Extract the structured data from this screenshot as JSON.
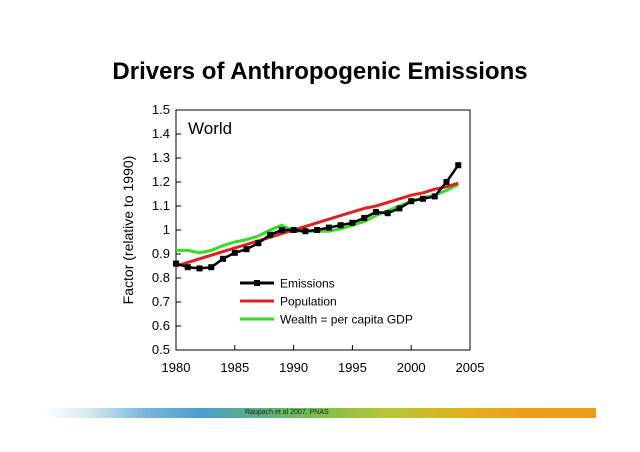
{
  "slide": {
    "title": "Drivers of Anthropogenic Emissions",
    "credit": "Raupach et al 2007, PNAS"
  },
  "chart_data": {
    "type": "line",
    "title": "Drivers of Anthropogenic Emissions",
    "panel_label": "World",
    "xlabel": "",
    "ylabel": "Factor (relative to 1990)",
    "xlim": [
      1980,
      2005
    ],
    "ylim": [
      0.5,
      1.5
    ],
    "x_ticks": [
      1980,
      1985,
      1990,
      1995,
      2000,
      2005
    ],
    "y_ticks": [
      0.5,
      0.6,
      0.7,
      0.8,
      0.9,
      1,
      1.1,
      1.2,
      1.3,
      1.4,
      1.5
    ],
    "grid": false,
    "legend_position": "lower-center",
    "series": [
      {
        "name": "Emissions",
        "color": "#000000",
        "marker": "square",
        "x": [
          1980,
          1981,
          1982,
          1983,
          1984,
          1985,
          1986,
          1987,
          1988,
          1989,
          1990,
          1991,
          1992,
          1993,
          1994,
          1995,
          1996,
          1997,
          1998,
          1999,
          2000,
          2001,
          2002,
          2003,
          2004
        ],
        "y": [
          0.86,
          0.845,
          0.84,
          0.845,
          0.88,
          0.905,
          0.92,
          0.945,
          0.98,
          1.0,
          1.0,
          0.995,
          1.0,
          1.01,
          1.02,
          1.03,
          1.05,
          1.075,
          1.07,
          1.09,
          1.12,
          1.13,
          1.14,
          1.2,
          1.27
        ]
      },
      {
        "name": "Population",
        "color": "#e02020",
        "x": [
          1980,
          1981,
          1982,
          1983,
          1984,
          1985,
          1986,
          1987,
          1988,
          1989,
          1990,
          1991,
          1992,
          1993,
          1994,
          1995,
          1996,
          1997,
          1998,
          1999,
          2000,
          2001,
          2002,
          2003,
          2004
        ],
        "y": [
          0.85,
          0.865,
          0.88,
          0.895,
          0.91,
          0.925,
          0.94,
          0.955,
          0.97,
          0.985,
          1.0,
          1.015,
          1.03,
          1.045,
          1.06,
          1.075,
          1.09,
          1.1,
          1.115,
          1.13,
          1.145,
          1.155,
          1.17,
          1.18,
          1.195
        ]
      },
      {
        "name": "Wealth = per capita GDP",
        "color": "#33dd22",
        "x": [
          1980,
          1981,
          1982,
          1983,
          1984,
          1985,
          1986,
          1987,
          1988,
          1989,
          1990,
          1991,
          1992,
          1993,
          1994,
          1995,
          1996,
          1997,
          1998,
          1999,
          2000,
          2001,
          2002,
          2003,
          2004
        ],
        "y": [
          0.915,
          0.915,
          0.905,
          0.915,
          0.935,
          0.95,
          0.96,
          0.975,
          1.0,
          1.02,
          0.995,
          0.995,
          0.995,
          0.995,
          1.005,
          1.02,
          1.035,
          1.06,
          1.08,
          1.1,
          1.12,
          1.135,
          1.145,
          1.165,
          1.19
        ]
      }
    ]
  }
}
